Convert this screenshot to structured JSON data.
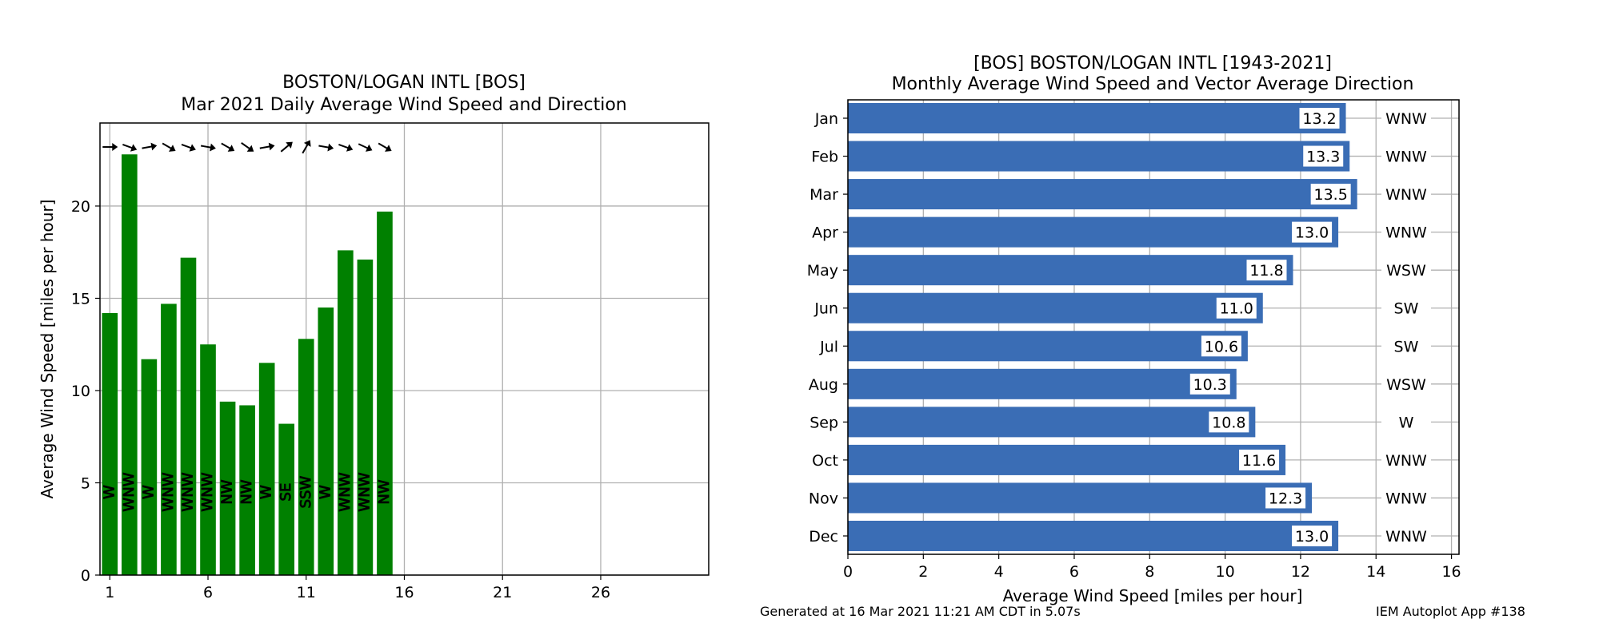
{
  "footer": {
    "generated": "Generated at 16 Mar 2021 11:21 AM CDT in 5.07s",
    "app": "IEM Autoplot App #138"
  },
  "chart_data": [
    {
      "type": "bar",
      "title": "BOSTON/LOGAN INTL [BOS]",
      "subtitle": "Mar 2021 Daily Average Wind Speed and Direction",
      "xlabel": "",
      "ylabel": "Average Wind Speed [miles per hour]",
      "x": [
        1,
        2,
        3,
        4,
        5,
        6,
        7,
        8,
        9,
        10,
        11,
        12,
        13,
        14,
        15
      ],
      "values": [
        14.2,
        22.8,
        11.7,
        14.7,
        17.2,
        12.5,
        9.4,
        9.2,
        11.5,
        8.2,
        12.8,
        14.5,
        17.6,
        17.1,
        19.7
      ],
      "directions": [
        "W",
        "WNW",
        "W",
        "WNW",
        "WNW",
        "WNW",
        "NW",
        "NW",
        "W",
        "SE",
        "SSW",
        "W",
        "WNW",
        "WNW",
        "NW"
      ],
      "arrow_angles_deg": [
        0,
        20,
        -10,
        30,
        20,
        10,
        30,
        35,
        -10,
        -40,
        -60,
        10,
        20,
        25,
        30
      ],
      "xlim": [
        0.5,
        31.5
      ],
      "ylim": [
        0,
        24.5
      ],
      "xticks": [
        1,
        6,
        11,
        16,
        21,
        26
      ],
      "yticks": [
        0,
        5,
        10,
        15,
        20
      ],
      "grid": true,
      "bar_color": "#008000"
    },
    {
      "type": "bar",
      "orientation": "horizontal",
      "title": "[BOS] BOSTON/LOGAN INTL [1943-2021]",
      "subtitle": "Monthly Average Wind Speed and Vector Average Direction",
      "xlabel": "Average Wind Speed [miles per hour]",
      "ylabel": "",
      "categories": [
        "Jan",
        "Feb",
        "Mar",
        "Apr",
        "May",
        "Jun",
        "Jul",
        "Aug",
        "Sep",
        "Oct",
        "Nov",
        "Dec"
      ],
      "values": [
        13.2,
        13.3,
        13.5,
        13.0,
        11.8,
        11.0,
        10.6,
        10.3,
        10.8,
        11.6,
        12.3,
        13.0
      ],
      "value_labels": [
        "13.2",
        "13.3",
        "13.5",
        "13.0",
        "11.8",
        "11.0",
        "10.6",
        "10.3",
        "10.8",
        "11.6",
        "12.3",
        "13.0"
      ],
      "directions": [
        "WNW",
        "WNW",
        "WNW",
        "WNW",
        "WSW",
        "SW",
        "SW",
        "WSW",
        "W",
        "WNW",
        "WNW",
        "WNW"
      ],
      "xlim": [
        0,
        16.2
      ],
      "xticks": [
        0,
        2,
        4,
        6,
        8,
        10,
        12,
        14,
        16
      ],
      "grid": true,
      "bar_color": "#3a6db5"
    }
  ]
}
